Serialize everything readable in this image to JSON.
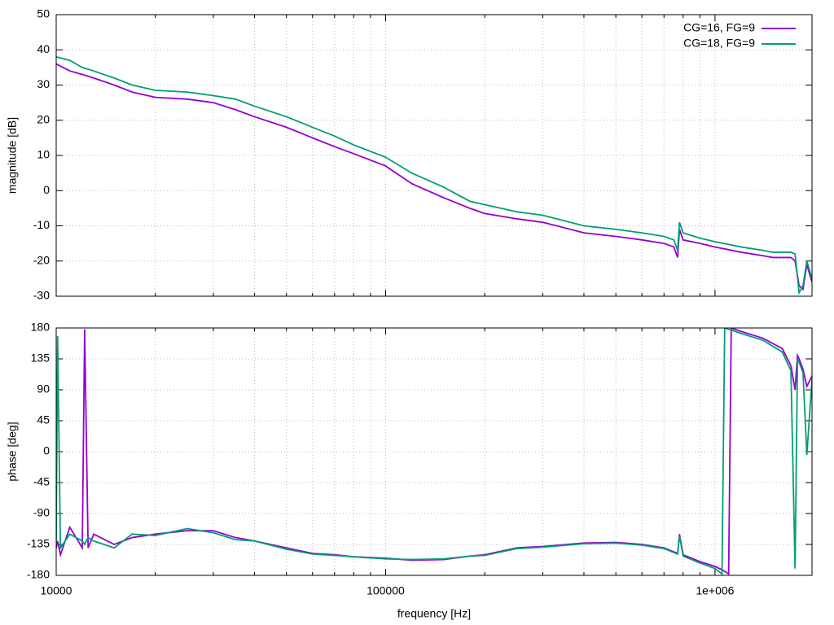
{
  "chart_data": [
    {
      "type": "line",
      "ylabel": "magnitude [dB]",
      "xscale": "log",
      "grid": true,
      "legend": "top-right",
      "xlim": [
        10000,
        1970000
      ],
      "xticks": [
        10000,
        100000,
        1000000
      ],
      "ylim": [
        -30,
        50
      ],
      "yticks": [
        -30,
        -20,
        -10,
        0,
        10,
        20,
        30,
        40,
        50
      ],
      "x": [
        10000,
        11000,
        12000,
        13000,
        15000,
        17000,
        20000,
        25000,
        30000,
        35000,
        40000,
        50000,
        60000,
        70000,
        80000,
        100000,
        120000,
        150000,
        180000,
        200000,
        250000,
        300000,
        400000,
        500000,
        600000,
        700000,
        750000,
        770000,
        780000,
        800000,
        900000,
        1000000,
        1200000,
        1400000,
        1500000,
        1700000,
        1750000,
        1800000,
        1850000,
        1900000,
        1970000
      ],
      "series": [
        {
          "name": "CG=16, FG=9",
          "color": "#9400d3",
          "values": [
            36,
            34,
            33,
            32,
            30,
            28,
            26.5,
            26,
            25,
            23,
            21,
            18,
            15,
            12.5,
            10.5,
            7,
            2,
            -2,
            -5,
            -6.5,
            -8,
            -9,
            -12,
            -13,
            -14,
            -15,
            -16,
            -19,
            -11,
            -14,
            -15,
            -16,
            -17.5,
            -18.5,
            -19,
            -19,
            -20,
            -27,
            -28,
            -21,
            -26
          ]
        },
        {
          "name": "CG=18, FG=9",
          "color": "#009e73",
          "values": [
            38,
            37,
            35,
            34,
            32,
            30,
            28.5,
            28,
            27,
            26,
            24,
            21,
            18,
            15.5,
            13,
            9.5,
            5,
            1,
            -3,
            -4,
            -6,
            -7,
            -10,
            -11,
            -12,
            -13,
            -14,
            -17,
            -9,
            -12,
            -13.5,
            -14.5,
            -16,
            -17,
            -17.5,
            -17.5,
            -18,
            -29,
            -27,
            -20,
            -25
          ]
        }
      ]
    },
    {
      "type": "line",
      "ylabel": "phase [deg]",
      "xlabel": "frequency [Hz]",
      "xscale": "log",
      "grid": true,
      "xlim": [
        10000,
        1970000
      ],
      "xticks": [
        10000,
        100000,
        {
          "value": 1000000,
          "label": "1e+006"
        }
      ],
      "ylim": [
        -180,
        180
      ],
      "yticks": [
        -180,
        -135,
        -90,
        -45,
        0,
        45,
        90,
        135,
        180
      ],
      "x": [
        10000,
        10100,
        10300,
        11000,
        12000,
        12200,
        12500,
        13000,
        15000,
        17000,
        20000,
        25000,
        30000,
        35000,
        40000,
        50000,
        60000,
        70000,
        80000,
        100000,
        120000,
        150000,
        180000,
        200000,
        250000,
        300000,
        400000,
        500000,
        600000,
        700000,
        770000,
        780000,
        800000,
        900000,
        1000000,
        1050000,
        1070000,
        1100000,
        1120000,
        1200000,
        1400000,
        1600000,
        1700000,
        1750000,
        1780000,
        1800000,
        1850000,
        1900000,
        1970000
      ],
      "series": [
        {
          "name": "CG=16, FG=9",
          "color": "#9400d3",
          "values": [
            -140,
            -130,
            -150,
            -110,
            -140,
            178,
            -140,
            -120,
            -135,
            -125,
            -120,
            -115,
            -115,
            -125,
            -130,
            -140,
            -148,
            -150,
            -153,
            -155,
            -158,
            -157,
            -152,
            -150,
            -140,
            -138,
            -133,
            -132,
            -135,
            -140,
            -148,
            -120,
            -150,
            -160,
            -167,
            -172,
            -174,
            -178,
            180,
            175,
            165,
            150,
            125,
            90,
            140,
            135,
            120,
            95,
            110
          ]
        },
        {
          "name": "CG=18, FG=9",
          "color": "#009e73",
          "values": [
            -130,
            168,
            -140,
            -120,
            -130,
            -135,
            -125,
            -130,
            -140,
            -120,
            -122,
            -112,
            -118,
            -128,
            -130,
            -142,
            -149,
            -151,
            -153,
            -156,
            -157,
            -156,
            -152,
            -151,
            -141,
            -139,
            -134,
            -133,
            -136,
            -141,
            -149,
            -122,
            -152,
            -162,
            -170,
            -178,
            180,
            178,
            177,
            172,
            162,
            145,
            118,
            -170,
            135,
            130,
            115,
            -5,
            105
          ]
        }
      ]
    }
  ]
}
